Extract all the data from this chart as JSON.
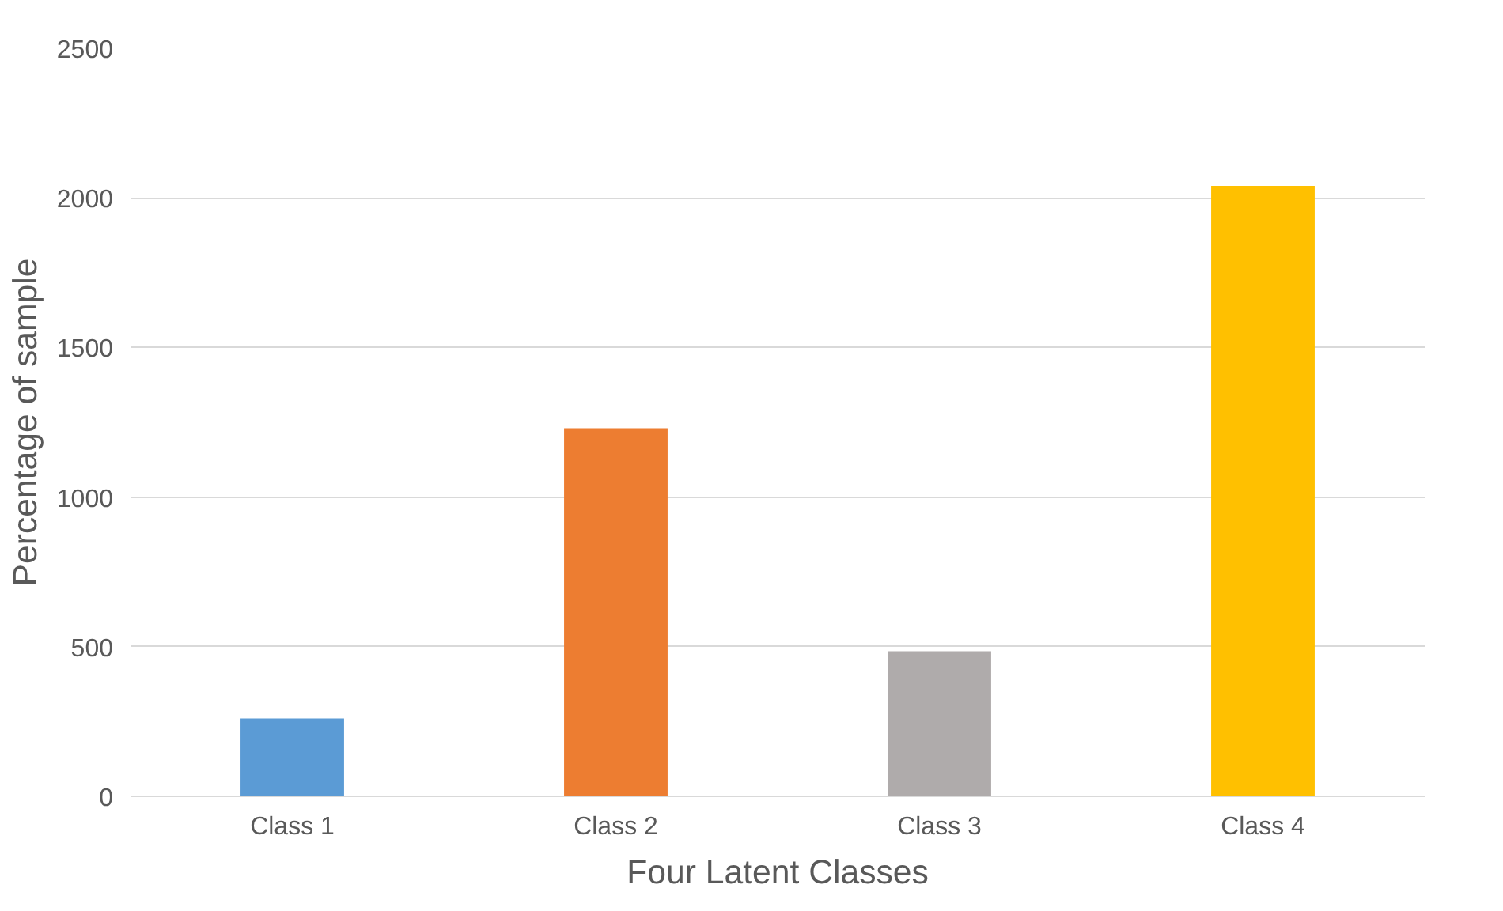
{
  "chart_data": {
    "type": "bar",
    "categories": [
      "Class 1",
      "Class 2",
      "Class 3",
      "Class 4"
    ],
    "values": [
      260,
      1230,
      485,
      2040
    ],
    "colors": [
      "#5b9bd5",
      "#ed7d31",
      "#afabab",
      "#ffc000"
    ],
    "xlabel": "Four Latent Classes",
    "ylabel": "Percentage of sample",
    "ylim": [
      0,
      2500
    ],
    "yticks": [
      0,
      500,
      1000,
      1500,
      2000,
      2500
    ],
    "grid": "y"
  }
}
